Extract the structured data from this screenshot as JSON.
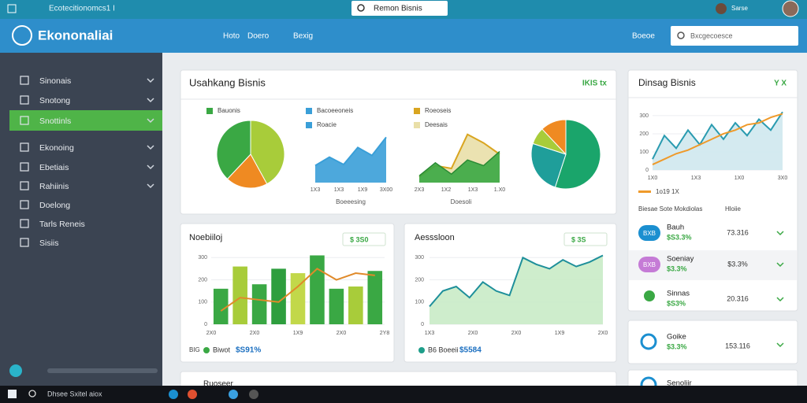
{
  "topbar": {
    "breadcrumb": "Ecotecitionomcs1 I",
    "search": "Remon Bisnis",
    "user": "Sarse"
  },
  "header": {
    "logo": "Ekononaliai",
    "nav": [
      "Hoto",
      "Doero",
      "Bexig"
    ],
    "action": "Boeoe",
    "search": "Bxcgecoesce"
  },
  "sidebar": {
    "items": [
      "Sinonais",
      "Snotong",
      "Snottinls",
      "Ekonoing",
      "Ebetiais",
      "Rahiinis",
      "Doelong",
      "Tarls Reneis",
      "Sisiis"
    ],
    "active": 2
  },
  "overview": {
    "title": "Usahkang Bisnis",
    "badge": "IKIS tx",
    "pie": {
      "type": "pie",
      "legend": "Bauonis",
      "values": [
        42,
        20,
        38
      ],
      "colors": [
        "#a8cc3a",
        "#ef8a22",
        "#3aa844"
      ]
    },
    "area1": {
      "type": "area",
      "legend": [
        "Bacoeeoneis",
        "Roacie"
      ],
      "color": "#3a9fd8",
      "values": [
        30,
        45,
        32,
        62,
        48,
        80
      ],
      "ylim": [
        0,
        100
      ],
      "xlabels": [
        "1X3",
        "1X3",
        "1X9",
        "3X00"
      ],
      "xlabel": "Boeeesing"
    },
    "area2": {
      "type": "area",
      "legend": [
        "Roeoseis",
        "Deesais"
      ],
      "series": [
        {
          "color": "#e9dfa8",
          "values": [
            10,
            30,
            25,
            85,
            70,
            50
          ]
        },
        {
          "color": "#3aa844",
          "values": [
            12,
            35,
            15,
            40,
            30,
            55
          ]
        }
      ],
      "line_color": "#d9a520",
      "ylim": [
        0,
        100
      ],
      "xlabels": [
        "2X3",
        "1X2",
        "1X3",
        "1.X0"
      ],
      "xlabel": "Doesoli"
    },
    "pie2": {
      "type": "pie",
      "values": [
        55,
        25,
        8,
        12
      ],
      "colors": [
        "#1aa56b",
        "#1f9e9a",
        "#a8cc3a",
        "#ef8a22"
      ]
    }
  },
  "trend": {
    "title": "Dinsag Bisnis",
    "badge": "Y X",
    "chart": {
      "type": "line",
      "series": [
        {
          "color": "#2a9bb0",
          "values": [
            60,
            190,
            120,
            220,
            140,
            250,
            170,
            260,
            190,
            280,
            220,
            320
          ]
        },
        {
          "color": "#ef9a2a",
          "values": [
            30,
            60,
            90,
            110,
            140,
            170,
            200,
            220,
            250,
            260,
            290,
            310
          ]
        }
      ],
      "ylim": [
        0,
        330
      ],
      "yticks": [
        0,
        100,
        200,
        300
      ],
      "xlabels": [
        "1X0",
        "1X3",
        "1X0",
        "3X0"
      ],
      "legend": "1o19 1X"
    },
    "list_header": [
      "Biesae Sote Mokdiolas",
      "Hloiie"
    ],
    "rows": [
      {
        "icon": "BXB",
        "name": "Bauh",
        "sub": "$S3.3%",
        "value": "73.316",
        "color": "#1b8fd0"
      },
      {
        "icon": "BXB",
        "name": "Soeniay",
        "sub": "$3.3%",
        "value": "$3.3%",
        "color": "#c57bd6"
      },
      {
        "name": "Sinnas",
        "sub": "$S3%",
        "value": "20.316",
        "color": "#3aa844"
      }
    ],
    "row2": {
      "name": "Goike",
      "sub": "$3.3%",
      "value": "153.116",
      "color": "#1b8fd0"
    },
    "row3": {
      "name": "Senoliir",
      "color": "#1b8fd0"
    }
  },
  "bars": {
    "title": "Noebiiloj",
    "badge": "$ 3S0",
    "type": "bar",
    "values": [
      160,
      260,
      180,
      250,
      230,
      310,
      160,
      170,
      240
    ],
    "colors": [
      "#3aa844",
      "#a8cc3a",
      "#3aa844",
      "#2e9e3e",
      "#c2d84a",
      "#3aa844",
      "#3aa844",
      "#a8cc3a",
      "#3aa844"
    ],
    "line": [
      60,
      120,
      110,
      100,
      170,
      250,
      200,
      230,
      220
    ],
    "line_color": "#e08a2a",
    "ylim": [
      0,
      340
    ],
    "yticks": [
      0,
      100,
      200,
      300
    ],
    "xlabels": [
      "2X0",
      "2X0",
      "1X9",
      "2X0",
      "2Y8"
    ],
    "legend": [
      "BIG",
      "Biwot",
      "$S91%"
    ]
  },
  "growth": {
    "title": "Aesssloon",
    "badge": "$ 3S",
    "type": "area",
    "values": [
      80,
      150,
      170,
      120,
      190,
      150,
      130,
      300,
      270,
      250,
      290,
      260,
      280,
      310
    ],
    "color": "#1e8f9a",
    "fill": "#c9ebc6",
    "ylim": [
      0,
      340
    ],
    "yticks": [
      0,
      100,
      200,
      300
    ],
    "xlabels": [
      "1X3",
      "2X0",
      "2X0",
      "1X9",
      "2X0"
    ],
    "legend": [
      "B6 Boeeii",
      "$5584"
    ]
  },
  "lower": {
    "title": "Ruoseer"
  },
  "taskbar": {
    "search": "Dhsee Sxitel aiox"
  }
}
